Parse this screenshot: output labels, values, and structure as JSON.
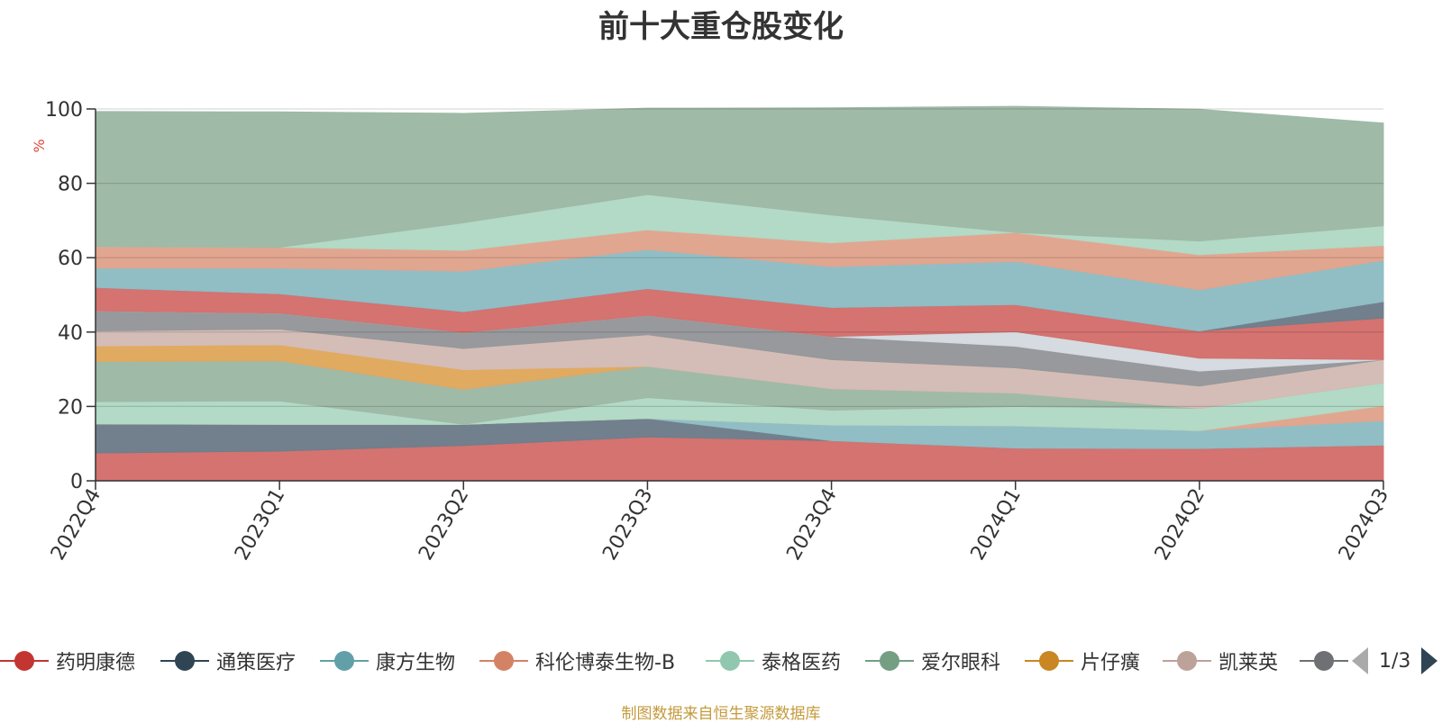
{
  "title": "前十大重仓股变化",
  "source_note": "制图数据来自恒生聚源数据库",
  "legend_page": "1/3",
  "chart_data": {
    "type": "area",
    "stacked": true,
    "y_unit": "%",
    "ylim": [
      0,
      100
    ],
    "yticks": [
      0,
      20,
      40,
      60,
      80,
      100
    ],
    "grid": true,
    "legend_position": "bottom",
    "categories": [
      "2022Q4",
      "2023Q1",
      "2023Q2",
      "2023Q3",
      "2023Q4",
      "2024Q1",
      "2024Q2",
      "2024Q3"
    ],
    "series": [
      {
        "name": "药明康德",
        "color": "#d3706d",
        "values": [
          7.5,
          8.0,
          9.5,
          11.8,
          10.8,
          8.8,
          8.7,
          9.6
        ]
      },
      {
        "name": "通策医疗",
        "color": "#6e7d8a",
        "values": [
          7.8,
          7.2,
          5.7,
          5.0,
          0,
          0,
          0,
          0
        ]
      },
      {
        "name": "康方生物",
        "color": "#8fbdc4",
        "values": [
          0,
          0,
          0,
          0,
          4.2,
          6.0,
          4.8,
          6.6
        ]
      },
      {
        "name": "科伦博泰生物-B",
        "color": "#e0a48e",
        "values": [
          0,
          0,
          0,
          0,
          0,
          0,
          0,
          4.0
        ]
      },
      {
        "name": "泰格医药",
        "color": "#b0d9c5",
        "values": [
          6.0,
          6.3,
          0,
          5.6,
          4.0,
          5.2,
          6.0,
          6.2
        ]
      },
      {
        "name": "爱尔眼科",
        "color": "#9eb9a6",
        "values": [
          10.8,
          10.8,
          9.4,
          8.4,
          5.8,
          3.6,
          0,
          0
        ]
      },
      {
        "name": "片仔癀",
        "color": "#e0a85e",
        "values": [
          4.2,
          4.3,
          5.3,
          0,
          0,
          0,
          0,
          0
        ]
      },
      {
        "name": "凯莱英",
        "color": "#d3bcb6",
        "values": [
          4.0,
          4.2,
          5.7,
          8.5,
          7.8,
          6.8,
          6.0,
          6.2
        ]
      },
      {
        "name": "",
        "color": "#96979b",
        "values": [
          5.4,
          4.3,
          4.3,
          5.2,
          6.2,
          5.8,
          4.0,
          0
        ]
      },
      {
        "name": "",
        "color": "#d4dadf",
        "values": [
          0,
          0,
          0,
          0,
          0,
          3.9,
          3.5,
          0
        ]
      },
      {
        "name": "",
        "color": "#d3706d",
        "values": [
          6.3,
          5.2,
          5.6,
          7.2,
          7.8,
          7.3,
          7.3,
          11.2
        ]
      },
      {
        "name": "",
        "color": "#6e7d8a",
        "values": [
          0,
          0,
          0,
          0,
          0,
          0,
          0,
          4.4
        ]
      },
      {
        "name": "",
        "color": "#8fbdc4",
        "values": [
          5.2,
          6.9,
          10.9,
          10.5,
          11.0,
          11.6,
          11.1,
          11.1
        ]
      },
      {
        "name": "",
        "color": "#e0a48e",
        "values": [
          5.8,
          5.6,
          5.6,
          5.3,
          6.4,
          7.8,
          9.4,
          4.0
        ]
      },
      {
        "name": "",
        "color": "#b0d9c5",
        "values": [
          0,
          0,
          7.4,
          9.5,
          7.5,
          0,
          3.7,
          5.3
        ]
      },
      {
        "name": "",
        "color": "#9eb9a6",
        "values": [
          36.3,
          36.4,
          29.4,
          23.2,
          28.8,
          33.9,
          35.4,
          27.6
        ]
      }
    ]
  }
}
